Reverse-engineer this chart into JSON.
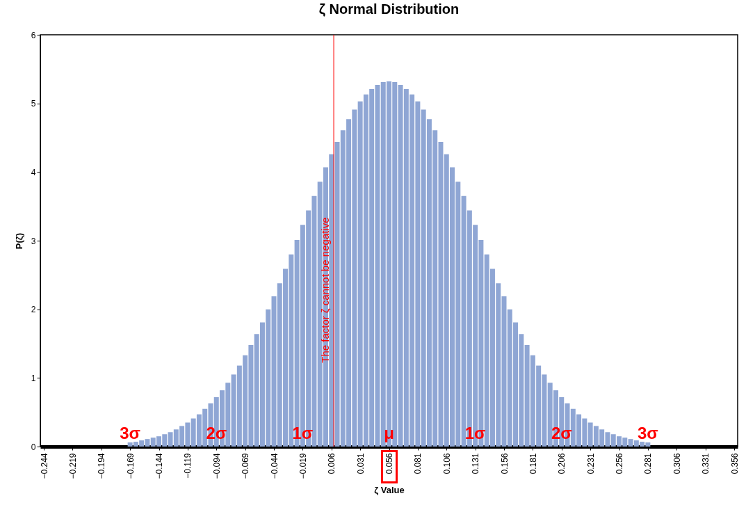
{
  "chart_data": {
    "type": "bar",
    "title": "ζ Normal Distribution",
    "xlabel": "ζ Value",
    "ylabel": "P(ζ)",
    "x": [
      -0.169,
      -0.164,
      -0.159,
      -0.154,
      -0.149,
      -0.144,
      -0.139,
      -0.134,
      -0.129,
      -0.124,
      -0.119,
      -0.114,
      -0.109,
      -0.104,
      -0.099,
      -0.094,
      -0.089,
      -0.084,
      -0.079,
      -0.074,
      -0.069,
      -0.064,
      -0.059,
      -0.054,
      -0.049,
      -0.044,
      -0.039,
      -0.034,
      -0.029,
      -0.024,
      -0.019,
      -0.014,
      -0.009,
      -0.004,
      0.001,
      0.006,
      0.011,
      0.016,
      0.021,
      0.026,
      0.031,
      0.036,
      0.041,
      0.046,
      0.051,
      0.056,
      0.061,
      0.066,
      0.071,
      0.076,
      0.081,
      0.086,
      0.091,
      0.096,
      0.101,
      0.106,
      0.111,
      0.116,
      0.121,
      0.126,
      0.131,
      0.136,
      0.141,
      0.146,
      0.151,
      0.156,
      0.161,
      0.166,
      0.171,
      0.176,
      0.181,
      0.186,
      0.191,
      0.196,
      0.201,
      0.206,
      0.211,
      0.216,
      0.221,
      0.226,
      0.231,
      0.236,
      0.241,
      0.246,
      0.251,
      0.256,
      0.261,
      0.266,
      0.271,
      0.276,
      0.281
    ],
    "values": [
      0.06,
      0.07,
      0.09,
      0.11,
      0.13,
      0.15,
      0.18,
      0.21,
      0.25,
      0.3,
      0.35,
      0.41,
      0.47,
      0.55,
      0.63,
      0.72,
      0.82,
      0.93,
      1.05,
      1.18,
      1.33,
      1.48,
      1.64,
      1.81,
      2.0,
      2.19,
      2.38,
      2.59,
      2.8,
      3.01,
      3.23,
      3.44,
      3.65,
      3.86,
      4.07,
      4.26,
      4.44,
      4.61,
      4.77,
      4.91,
      5.03,
      5.13,
      5.21,
      5.27,
      5.31,
      5.32,
      5.31,
      5.27,
      5.21,
      5.13,
      5.03,
      4.91,
      4.77,
      4.61,
      4.44,
      4.26,
      4.07,
      3.86,
      3.65,
      3.44,
      3.23,
      3.01,
      2.8,
      2.59,
      2.38,
      2.19,
      2.0,
      1.81,
      1.64,
      1.48,
      1.33,
      1.18,
      1.05,
      0.93,
      0.82,
      0.72,
      0.63,
      0.55,
      0.47,
      0.41,
      0.35,
      0.3,
      0.25,
      0.21,
      0.18,
      0.15,
      0.13,
      0.11,
      0.09,
      0.07,
      0.06
    ],
    "color": "#8fa6d4",
    "xlim": [
      -0.244,
      0.356
    ],
    "xticks": [
      -0.244,
      -0.219,
      -0.194,
      -0.169,
      -0.144,
      -0.119,
      -0.094,
      -0.069,
      -0.044,
      -0.019,
      0.006,
      0.031,
      0.056,
      0.081,
      0.106,
      0.131,
      0.156,
      0.181,
      0.206,
      0.231,
      0.256,
      0.281,
      0.306,
      0.331,
      0.356
    ],
    "ylim": [
      0,
      6
    ],
    "yticks": [
      0,
      1,
      2,
      3,
      4,
      5,
      6
    ],
    "ref_lines": [
      {
        "axis": "x",
        "value": 0.008,
        "label": "The factor ζ cannot be negative",
        "color": "#ff0000"
      }
    ],
    "annotations": [
      "3σ",
      "2σ",
      "1σ",
      "μ",
      "1σ",
      "2σ",
      "3σ"
    ]
  }
}
